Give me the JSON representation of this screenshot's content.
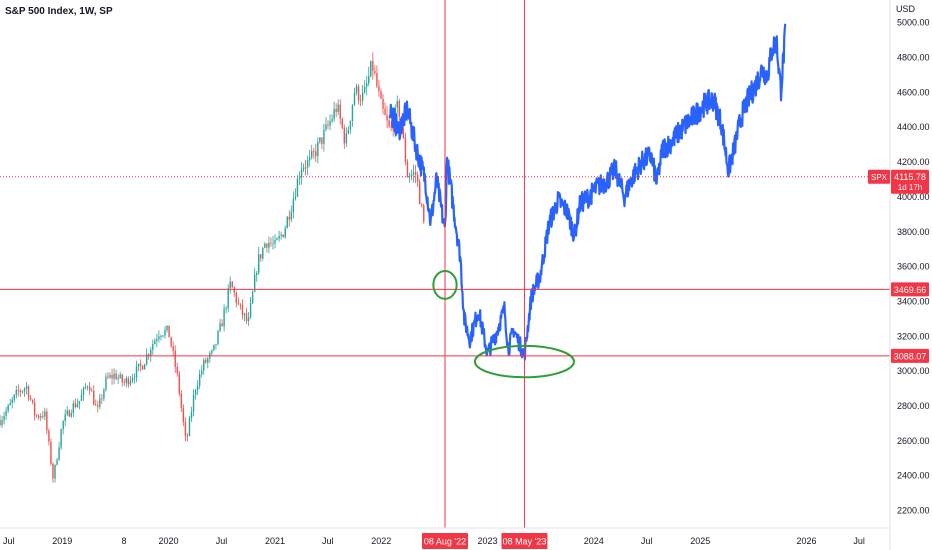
{
  "header": {
    "title": "S&P 500 Index, 1W, SP"
  },
  "y_axis": {
    "currency": "USD"
  },
  "colors": {
    "up": "#26a69a",
    "down": "#ef5350",
    "drawing": "#2962ff",
    "crosshair": "#f23645",
    "annotation": "#2e9d3a",
    "axis_text": "#131722"
  },
  "markers": {
    "price_label": {
      "symbol": "SPX",
      "price": "4115.78",
      "countdown": "1d 17h"
    },
    "h_lines": [
      {
        "id": "upper",
        "price": 3469.66,
        "label": "3469.66"
      },
      {
        "id": "lower",
        "price": 3088.07,
        "label": "3088.07"
      }
    ],
    "v_lines": [
      {
        "id": "aug22",
        "date": "2022-08-08",
        "label": "08 Aug '22"
      },
      {
        "id": "may23",
        "date": "2023-05-08",
        "label": "08 May '23"
      }
    ]
  },
  "chart_data": {
    "type": "line",
    "title": "S&P 500 Index, 1W, SP",
    "y_unit": "USD",
    "ylim": [
      2100,
      5130
    ],
    "xlim": [
      "2018-06-01",
      "2026-10-15"
    ],
    "y_ticks": [
      2200,
      2400,
      2600,
      2800,
      3000,
      3200,
      3400,
      3600,
      3800,
      4000,
      4200,
      4400,
      4600,
      4800,
      5000
    ],
    "x_ticks": [
      {
        "date": "2018-07-01",
        "label": "Jul"
      },
      {
        "date": "2019-01-01",
        "label": "2019"
      },
      {
        "date": "2019-08-01",
        "label": "8"
      },
      {
        "date": "2020-01-01",
        "label": "2020"
      },
      {
        "date": "2020-07-01",
        "label": "Jul"
      },
      {
        "date": "2021-01-01",
        "label": "2021"
      },
      {
        "date": "2021-07-01",
        "label": "Jul"
      },
      {
        "date": "2022-01-01",
        "label": "2022"
      },
      {
        "date": "2023-01-01",
        "label": "2023"
      },
      {
        "date": "2024-01-01",
        "label": "2024"
      },
      {
        "date": "2024-07-01",
        "label": "Jul"
      },
      {
        "date": "2025-01-01",
        "label": "2025"
      },
      {
        "date": "2026-01-01",
        "label": "2026"
      },
      {
        "date": "2026-07-01",
        "label": "Jul"
      }
    ],
    "series": [
      {
        "style": "candlestick",
        "x": [
          "2018-06-01",
          "2018-07-01",
          "2018-08-01",
          "2018-09-01",
          "2018-10-01",
          "2018-11-01",
          "2018-12-01",
          "2019-01-01",
          "2019-02-01",
          "2019-03-01",
          "2019-04-01",
          "2019-05-01",
          "2019-06-01",
          "2019-07-01",
          "2019-08-01",
          "2019-09-01",
          "2019-10-01",
          "2019-11-01",
          "2019-12-01",
          "2020-01-01",
          "2020-02-01",
          "2020-03-01",
          "2020-04-01",
          "2020-05-01",
          "2020-06-01",
          "2020-07-01",
          "2020-08-01",
          "2020-09-01",
          "2020-10-01",
          "2020-11-01",
          "2020-12-01",
          "2021-01-01",
          "2021-02-01",
          "2021-03-01",
          "2021-04-01",
          "2021-05-01",
          "2021-06-01",
          "2021-07-01",
          "2021-08-01",
          "2021-09-01",
          "2021-10-01",
          "2021-11-01",
          "2021-12-01",
          "2022-01-01",
          "2022-02-01",
          "2022-03-01",
          "2022-04-01",
          "2022-05-01",
          "2022-06-01"
        ],
        "y": [
          2720,
          2790,
          2880,
          2910,
          2740,
          2760,
          2380,
          2700,
          2790,
          2830,
          2940,
          2760,
          2950,
          2980,
          2930,
          2980,
          3030,
          3140,
          3230,
          3225,
          2960,
          2580,
          2900,
          3040,
          3100,
          3270,
          3500,
          3360,
          3270,
          3620,
          3750,
          3715,
          3810,
          3970,
          4180,
          4200,
          4300,
          4400,
          4520,
          4310,
          4610,
          4570,
          4760,
          4510,
          4370,
          4530,
          4130,
          4130,
          3790
        ]
      },
      {
        "style": "line",
        "x": [
          "2022-02-01",
          "2022-03-01",
          "2022-04-01",
          "2022-05-01",
          "2022-06-01",
          "2022-06-20",
          "2022-07-10",
          "2022-08-08",
          "2022-08-15",
          "2022-09-05",
          "2022-09-30",
          "2022-10-13",
          "2022-11-01",
          "2022-12-01",
          "2023-01-01",
          "2023-02-01",
          "2023-03-01",
          "2023-03-13",
          "2023-04-01",
          "2023-05-08",
          "2023-06-01",
          "2023-07-01",
          "2023-08-01",
          "2023-09-01",
          "2023-10-01",
          "2023-10-27",
          "2023-11-15",
          "2023-12-15",
          "2024-01-15",
          "2024-02-15",
          "2024-03-15",
          "2024-04-15",
          "2024-05-15",
          "2024-06-15",
          "2024-07-15",
          "2024-08-05",
          "2024-08-25",
          "2024-09-15",
          "2024-10-15",
          "2024-11-15",
          "2024-12-15",
          "2025-01-15",
          "2025-02-15",
          "2025-03-15",
          "2025-04-08",
          "2025-05-01",
          "2025-05-20",
          "2025-06-15",
          "2025-07-10",
          "2025-08-01",
          "2025-08-20",
          "2025-09-05",
          "2025-09-20",
          "2025-10-05",
          "2025-10-20"
        ],
        "y": [
          4500,
          4380,
          4500,
          4280,
          4100,
          3850,
          4100,
          3800,
          4220,
          3950,
          3650,
          3300,
          3180,
          3350,
          3100,
          3220,
          3360,
          3120,
          3240,
          3090,
          3430,
          3550,
          3850,
          3980,
          3920,
          3780,
          3960,
          4000,
          4060,
          4090,
          4160,
          4000,
          4120,
          4200,
          4240,
          4080,
          4280,
          4300,
          4360,
          4420,
          4470,
          4530,
          4560,
          4420,
          4150,
          4300,
          4450,
          4560,
          4640,
          4730,
          4700,
          4850,
          4890,
          4610,
          4930
        ]
      }
    ],
    "annotations": [
      {
        "shape": "ellipse",
        "center": [
          "2022-08-08",
          3495
        ],
        "rx_days": 40,
        "ry": 80
      },
      {
        "shape": "ellipse",
        "center": [
          "2023-05-08",
          3055
        ],
        "rx_days": 170,
        "ry": 90
      }
    ]
  }
}
